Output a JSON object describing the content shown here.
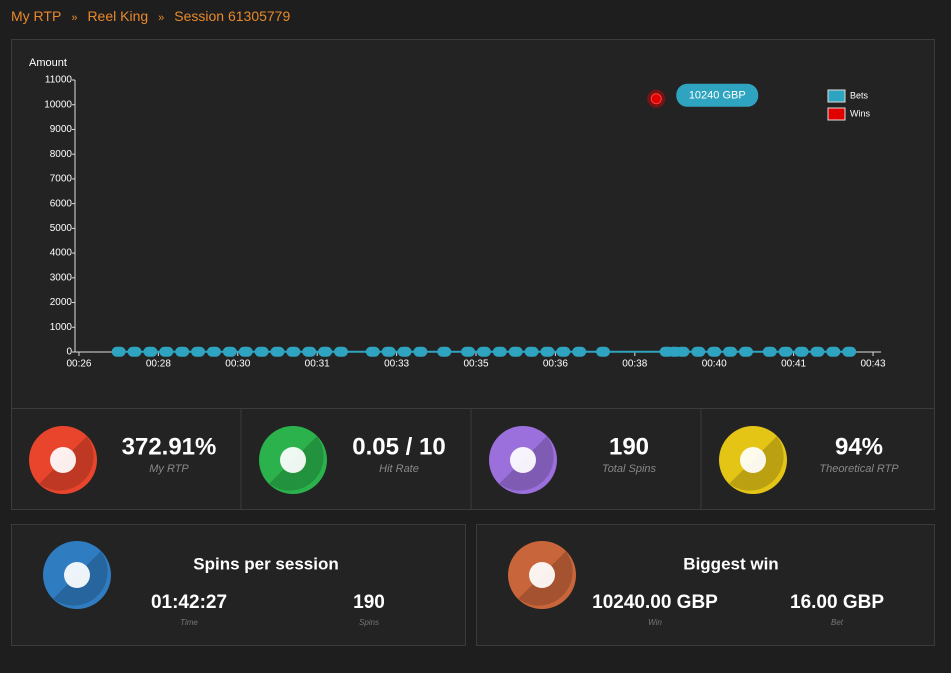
{
  "breadcrumb": [
    "My RTP",
    "Reel King",
    "Session 61305779"
  ],
  "chart_data": {
    "type": "scatter-line",
    "y_label": "Amount",
    "xlim": [
      -0.05,
      10.05
    ],
    "xticks": [
      {
        "value": 0,
        "label": "00:26"
      },
      {
        "value": 1,
        "label": "00:28"
      },
      {
        "value": 2,
        "label": "00:30"
      },
      {
        "value": 3,
        "label": "00:31"
      },
      {
        "value": 4,
        "label": "00:33"
      },
      {
        "value": 5,
        "label": "00:35"
      },
      {
        "value": 6,
        "label": "00:36"
      },
      {
        "value": 7,
        "label": "00:38"
      },
      {
        "value": 8,
        "label": "00:40"
      },
      {
        "value": 9,
        "label": "00:41"
      },
      {
        "value": 10,
        "label": "00:43"
      }
    ],
    "ylim": [
      0,
      11000
    ],
    "yticks": [
      0,
      1000,
      2000,
      3000,
      4000,
      5000,
      6000,
      7000,
      8000,
      9000,
      10000,
      11000
    ],
    "legend": "top-right",
    "series": [
      {
        "name": "Bets",
        "color": "#2fa4c0",
        "line": true,
        "x": [
          0.5,
          0.7,
          0.9,
          1.1,
          1.3,
          1.5,
          1.7,
          1.9,
          2.1,
          2.3,
          2.5,
          2.7,
          2.9,
          3.1,
          3.3,
          3.7,
          3.9,
          4.1,
          4.3,
          4.6,
          4.9,
          5.1,
          5.3,
          5.5,
          5.7,
          5.9,
          6.1,
          6.3,
          6.6,
          7.4,
          7.5,
          7.6,
          7.8,
          8.0,
          8.2,
          8.4,
          8.7,
          8.9,
          9.1,
          9.3,
          9.5,
          9.7
        ],
        "values": [
          10,
          10,
          10,
          10,
          10,
          10,
          10,
          10,
          10,
          10,
          10,
          10,
          10,
          10,
          10,
          10,
          10,
          10,
          10,
          10,
          10,
          10,
          10,
          10,
          10,
          10,
          10,
          10,
          10,
          10,
          10,
          10,
          10,
          10,
          10,
          10,
          10,
          10,
          10,
          10,
          10,
          10
        ]
      },
      {
        "name": "Wins",
        "color": "#e00000",
        "line": false,
        "x": [
          7.27
        ],
        "values": [
          10240
        ],
        "value_labels": [
          "10240 GBP"
        ]
      }
    ]
  },
  "stats": [
    {
      "value": "372.91%",
      "label": "My RTP",
      "color": "#e8452c"
    },
    {
      "value": "0.05 / 10",
      "label": "Hit Rate",
      "color": "#2bb24c"
    },
    {
      "value": "190",
      "label": "Total Spins",
      "color": "#9b6fdc"
    },
    {
      "value": "94%",
      "label": "Theoretical RTP",
      "color": "#e4c516"
    }
  ],
  "boxes": [
    {
      "title": "Spins per session",
      "color": "#2f7cc1",
      "items": [
        {
          "value": "01:42:27",
          "label": "Time"
        },
        {
          "value": "190",
          "label": "Spins"
        }
      ]
    },
    {
      "title": "Biggest win",
      "color": "#c8653a",
      "items": [
        {
          "value": "10240.00 GBP",
          "label": "Win"
        },
        {
          "value": "16.00 GBP",
          "label": "Bet"
        }
      ]
    }
  ]
}
